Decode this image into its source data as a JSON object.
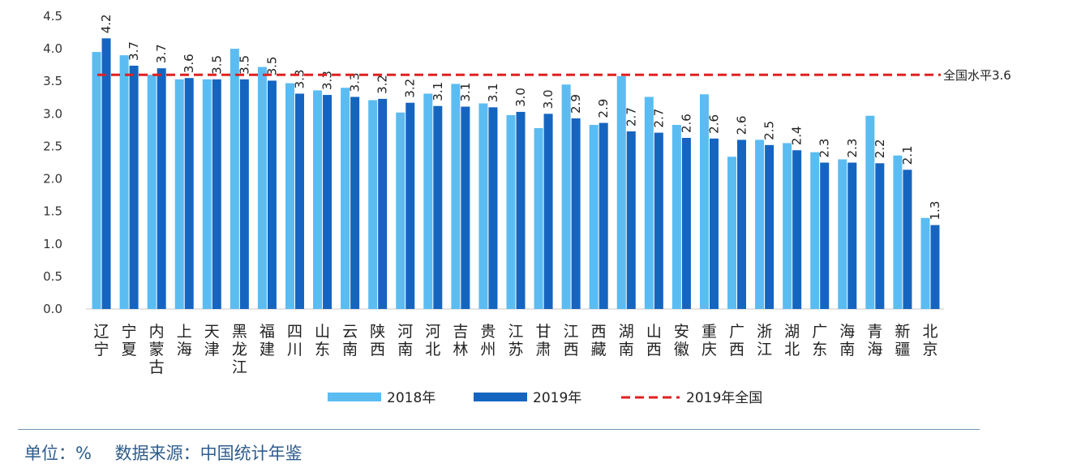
{
  "chart_data": {
    "type": "bar",
    "categories": [
      "辽宁",
      "宁夏",
      "内蒙古",
      "上海",
      "天津",
      "黑龙江",
      "福建",
      "四川",
      "山东",
      "云南",
      "陕西",
      "河南",
      "河北",
      "吉林",
      "贵州",
      "江苏",
      "甘肃",
      "江西",
      "西藏",
      "湖南",
      "山西",
      "安徽",
      "重庆",
      "广西",
      "浙江",
      "湖北",
      "广东",
      "海南",
      "青海",
      "新疆",
      "北京"
    ],
    "series": [
      {
        "name": "2018年",
        "color": "#5bbcf2",
        "values": [
          3.95,
          3.9,
          3.6,
          3.53,
          3.53,
          4.0,
          3.72,
          3.47,
          3.36,
          3.4,
          3.21,
          3.02,
          3.31,
          3.46,
          3.16,
          2.98,
          2.78,
          3.45,
          2.83,
          3.58,
          3.26,
          2.83,
          3.3,
          2.34,
          2.6,
          2.55,
          2.41,
          2.3,
          2.97,
          2.36,
          1.4
        ]
      },
      {
        "name": "2019年",
        "color": "#1565c0",
        "values": [
          4.16,
          3.74,
          3.7,
          3.55,
          3.53,
          3.53,
          3.51,
          3.31,
          3.29,
          3.26,
          3.23,
          3.17,
          3.12,
          3.11,
          3.1,
          3.03,
          3.0,
          2.93,
          2.86,
          2.73,
          2.71,
          2.63,
          2.62,
          2.6,
          2.52,
          2.44,
          2.25,
          2.25,
          2.24,
          2.14,
          1.29
        ]
      }
    ],
    "data_labels": [
      "4.2",
      "3.7",
      "3.7",
      "3.6",
      "3.5",
      "3.5",
      "3.5",
      "3.3",
      "3.3",
      "3.3",
      "3.2",
      "3.2",
      "3.1",
      "3.1",
      "3.1",
      "3.0",
      "3.0",
      "2.9",
      "2.9",
      "2.7",
      "2.7",
      "2.6",
      "2.6",
      "2.6",
      "2.5",
      "2.4",
      "2.3",
      "2.3",
      "2.2",
      "2.1",
      "1.3"
    ],
    "reference_line": {
      "name": "2019年全国",
      "value": 3.6,
      "label": "全国水平3.6",
      "color": "#e02020"
    },
    "ylim": [
      0,
      4.5
    ],
    "yticks": [
      "0.0",
      "0.5",
      "1.0",
      "1.5",
      "2.0",
      "2.5",
      "3.0",
      "3.5",
      "4.0",
      "4.5"
    ],
    "legend_position": "bottom-center",
    "grid": false
  },
  "footer": {
    "unit": "单位：%",
    "source": "数据来源：中国统计年鉴"
  }
}
